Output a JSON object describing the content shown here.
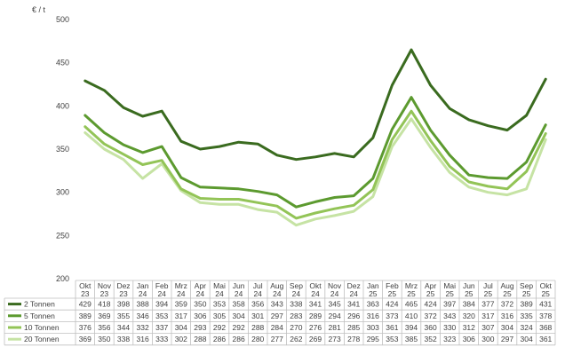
{
  "chart_data": {
    "type": "line",
    "ylabel": "€ / t",
    "ylim": [
      200,
      500
    ],
    "yticks": [
      200,
      250,
      300,
      350,
      400,
      450,
      500
    ],
    "grid": false,
    "legend": "data-table-left",
    "categories": [
      [
        "Okt",
        "23"
      ],
      [
        "Nov",
        "23"
      ],
      [
        "Dez",
        "23"
      ],
      [
        "Jan",
        "24"
      ],
      [
        "Feb",
        "24"
      ],
      [
        "Mrz",
        "24"
      ],
      [
        "Apr",
        "24"
      ],
      [
        "Mai",
        "24"
      ],
      [
        "Jun",
        "24"
      ],
      [
        "Jul",
        "24"
      ],
      [
        "Aug",
        "24"
      ],
      [
        "Sep",
        "24"
      ],
      [
        "Okt",
        "24"
      ],
      [
        "Nov",
        "24"
      ],
      [
        "Dez",
        "24"
      ],
      [
        "Jan",
        "25"
      ],
      [
        "Feb",
        "25"
      ],
      [
        "Mrz",
        "25"
      ],
      [
        "Apr",
        "25"
      ],
      [
        "Mai",
        "25"
      ],
      [
        "Jun",
        "25"
      ],
      [
        "Jul",
        "25"
      ],
      [
        "Aug",
        "25"
      ],
      [
        "Sep",
        "25"
      ],
      [
        "Okt",
        "25"
      ]
    ],
    "series": [
      {
        "name": "2 Tonnen",
        "color": "#3a6b1f",
        "values": [
          429,
          418,
          398,
          388,
          394,
          359,
          350,
          353,
          358,
          356,
          343,
          338,
          341,
          345,
          341,
          363,
          424,
          465,
          424,
          397,
          384,
          377,
          372,
          389,
          431
        ]
      },
      {
        "name": "5 Tonnen",
        "color": "#5c9a2f",
        "values": [
          389,
          369,
          355,
          346,
          353,
          317,
          306,
          305,
          304,
          301,
          297,
          283,
          289,
          294,
          296,
          316,
          373,
          410,
          372,
          343,
          320,
          317,
          316,
          335,
          378
        ]
      },
      {
        "name": "10 Tonnen",
        "color": "#93c457",
        "values": [
          376,
          356,
          344,
          332,
          337,
          304,
          293,
          292,
          292,
          288,
          284,
          270,
          276,
          281,
          285,
          303,
          361,
          394,
          360,
          330,
          312,
          307,
          304,
          324,
          368
        ]
      },
      {
        "name": "20 Tonnen",
        "color": "#c6e3a4",
        "values": [
          369,
          350,
          338,
          316,
          333,
          302,
          288,
          286,
          286,
          280,
          277,
          262,
          269,
          273,
          278,
          295,
          353,
          385,
          352,
          323,
          306,
          300,
          297,
          304,
          361
        ]
      }
    ]
  }
}
